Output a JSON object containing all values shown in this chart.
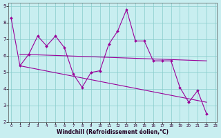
{
  "background_color": "#c8eef0",
  "grid_color": "#88cccc",
  "line_color": "#990099",
  "xlim_min": -0.3,
  "xlim_max": 23.2,
  "ylim_min": 2.0,
  "ylim_max": 9.2,
  "xticks": [
    0,
    1,
    2,
    3,
    4,
    5,
    6,
    7,
    8,
    9,
    10,
    11,
    12,
    13,
    14,
    15,
    16,
    17,
    18,
    19,
    20,
    21,
    22,
    23
  ],
  "yticks": [
    2,
    3,
    4,
    5,
    6,
    7,
    8,
    9
  ],
  "xlabel": "Windchill (Refroidissement éolien,°C)",
  "series1_x": [
    0,
    1,
    2,
    3,
    4,
    5,
    6,
    7,
    8,
    9,
    10,
    11,
    12,
    13,
    14,
    15,
    16,
    17,
    18,
    19,
    20,
    21,
    22
  ],
  "series1_y": [
    8.3,
    5.4,
    6.1,
    7.2,
    6.6,
    7.2,
    6.5,
    4.9,
    4.1,
    5.0,
    5.1,
    6.7,
    7.5,
    8.8,
    6.9,
    6.9,
    5.7,
    5.7,
    5.7,
    4.1,
    3.2,
    3.9,
    2.5
  ],
  "series2_x": [
    1,
    22
  ],
  "series2_y": [
    6.1,
    5.7
  ],
  "series3_x": [
    1,
    22
  ],
  "series3_y": [
    5.4,
    3.2
  ]
}
